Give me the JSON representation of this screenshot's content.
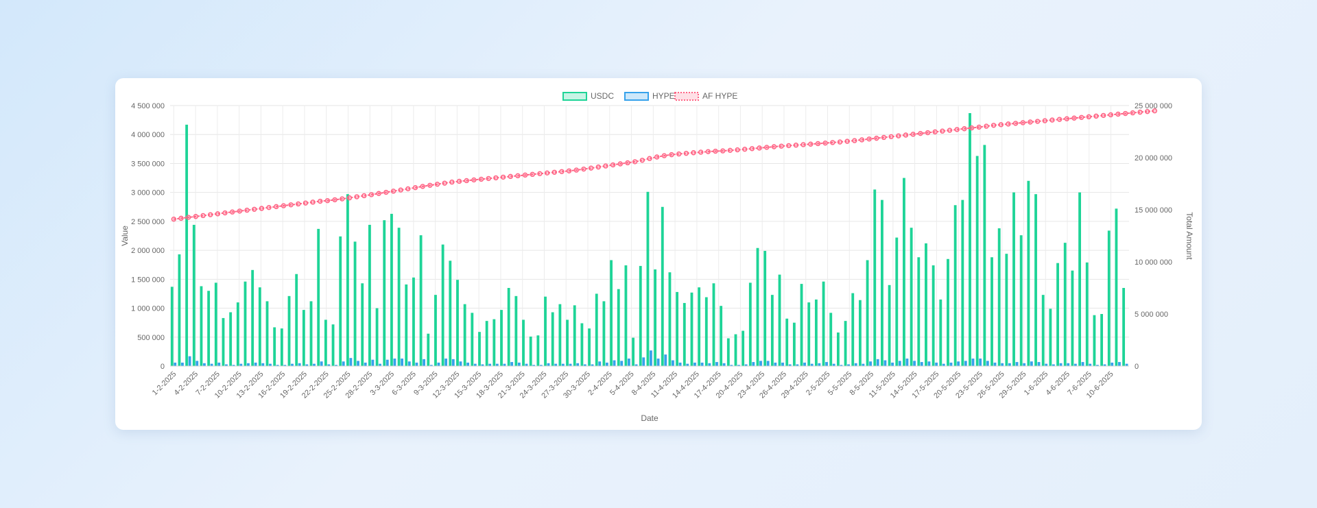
{
  "chart_data": {
    "type": "bar",
    "xlabel": "Date",
    "ylabel": "Value",
    "y2label": "Total Amount",
    "ylim": [
      0,
      4500000
    ],
    "y2lim": [
      0,
      25000000
    ],
    "yticks": [
      "0",
      "500 000",
      "1 000 000",
      "1 500 000",
      "2 000 000",
      "2 500 000",
      "3 000 000",
      "3 500 000",
      "4 000 000",
      "4 500 000"
    ],
    "y2ticks": [
      "0",
      "5 000 000",
      "10 000 000",
      "15 000 000",
      "20 000 000",
      "25 000 000"
    ],
    "grid": true,
    "legend_position": "top-center",
    "x_tick_labels": [
      "1-2-2025",
      "4-2-2025",
      "7-2-2025",
      "10-2-2025",
      "13-2-2025",
      "16-2-2025",
      "19-2-2025",
      "22-2-2025",
      "25-2-2025",
      "28-2-2025",
      "3-3-2025",
      "6-3-2025",
      "9-3-2025",
      "12-3-2025",
      "15-3-2025",
      "18-3-2025",
      "21-3-2025",
      "24-3-2025",
      "27-3-2025",
      "30-3-2025",
      "2-4-2025",
      "5-4-2025",
      "8-4-2025",
      "11-4-2025",
      "14-4-2025",
      "17-4-2025",
      "20-4-2025",
      "23-4-2025",
      "26-4-2025",
      "29-4-2025",
      "2-5-2025",
      "5-5-2025",
      "8-5-2025",
      "11-5-2025",
      "14-5-2025",
      "17-5-2025",
      "20-5-2025",
      "23-5-2025",
      "26-5-2025",
      "29-5-2025",
      "1-6-2025",
      "4-6-2025",
      "7-6-2025",
      "10-6-2025"
    ],
    "series": [
      {
        "name": "USDC",
        "axis": "left",
        "color": "#1ed497",
        "values": [
          1370000,
          1930000,
          4170000,
          2440000,
          1380000,
          1300000,
          1440000,
          830000,
          930000,
          1100000,
          1460000,
          1660000,
          1360000,
          1120000,
          670000,
          650000,
          1210000,
          1590000,
          970000,
          1120000,
          2370000,
          800000,
          720000,
          2240000,
          2970000,
          2150000,
          1430000,
          2440000,
          1000000,
          2520000,
          2630000,
          2390000,
          1410000,
          1530000,
          2260000,
          560000,
          1230000,
          2100000,
          1820000,
          1490000,
          1070000,
          920000,
          590000,
          780000,
          810000,
          970000,
          1350000,
          1210000,
          800000,
          510000,
          530000,
          1200000,
          930000,
          1070000,
          800000,
          1050000,
          740000,
          650000,
          1250000,
          1120000,
          1830000,
          1330000,
          1740000,
          490000,
          1730000,
          3010000,
          1670000,
          2750000,
          1620000,
          1280000,
          1090000,
          1270000,
          1360000,
          1190000,
          1430000,
          1040000,
          480000,
          550000,
          610000,
          1440000,
          2040000,
          1990000,
          1230000,
          1580000,
          820000,
          750000,
          1420000,
          1100000,
          1150000,
          1460000,
          920000,
          580000,
          780000,
          1260000,
          1140000,
          1830000,
          3050000,
          2870000,
          1400000,
          2220000,
          3250000,
          2390000,
          1880000,
          2120000,
          1740000,
          1150000,
          1850000,
          2780000,
          2870000,
          4370000,
          3630000,
          3820000,
          1880000,
          2380000,
          1940000,
          3000000,
          2260000,
          3200000,
          2970000,
          1230000,
          990000,
          1780000,
          2130000,
          1650000,
          3000000,
          1790000,
          880000,
          900000,
          2340000,
          2720000,
          1350000
        ]
      },
      {
        "name": "HYPE",
        "axis": "left",
        "color": "#36a2eb",
        "values": [
          60000,
          60000,
          170000,
          90000,
          50000,
          40000,
          60000,
          30000,
          20000,
          40000,
          50000,
          60000,
          50000,
          40000,
          20000,
          20000,
          40000,
          50000,
          30000,
          40000,
          80000,
          30000,
          20000,
          80000,
          140000,
          90000,
          60000,
          110000,
          40000,
          110000,
          130000,
          130000,
          80000,
          60000,
          120000,
          20000,
          60000,
          130000,
          120000,
          80000,
          60000,
          40000,
          30000,
          40000,
          40000,
          40000,
          70000,
          60000,
          40000,
          20000,
          20000,
          50000,
          40000,
          40000,
          40000,
          50000,
          30000,
          30000,
          80000,
          60000,
          100000,
          90000,
          130000,
          30000,
          150000,
          270000,
          130000,
          200000,
          100000,
          60000,
          40000,
          60000,
          60000,
          50000,
          70000,
          50000,
          20000,
          20000,
          30000,
          70000,
          90000,
          90000,
          60000,
          60000,
          30000,
          30000,
          60000,
          40000,
          50000,
          70000,
          40000,
          20000,
          30000,
          50000,
          40000,
          80000,
          120000,
          100000,
          60000,
          90000,
          130000,
          90000,
          70000,
          80000,
          60000,
          40000,
          60000,
          80000,
          90000,
          130000,
          130000,
          90000,
          60000,
          50000,
          50000,
          70000,
          50000,
          80000,
          70000,
          40000,
          30000,
          50000,
          50000,
          40000,
          70000,
          40000,
          20000,
          30000,
          60000,
          70000,
          40000
        ]
      },
      {
        "name": "AF HYPE",
        "axis": "right",
        "type": "line",
        "color": "#ff6384",
        "values": [
          14100000,
          14186000,
          14272000,
          14358000,
          14444000,
          14530000,
          14616000,
          14702000,
          14788000,
          14874000,
          14960000,
          15046000,
          15132000,
          15218000,
          15304000,
          15390000,
          15476000,
          15562000,
          15648000,
          15734000,
          15820000,
          15877000,
          15960000,
          16048000,
          16146000,
          16249000,
          16350000,
          16453000,
          16563000,
          16675000,
          16788000,
          16896000,
          17011000,
          17126000,
          17243000,
          17350000,
          17453000,
          17556000,
          17659000,
          17732000,
          17799000,
          17866000,
          17932000,
          17999000,
          18066000,
          18132000,
          18199000,
          18266000,
          18332000,
          18399000,
          18466000,
          18532000,
          18599000,
          18666000,
          18732000,
          18810000,
          18904000,
          19001000,
          19103000,
          19205000,
          19306000,
          19408000,
          19510000,
          19612000,
          19752000,
          19919000,
          20066000,
          20190000,
          20288000,
          20357000,
          20417000,
          20477000,
          20529000,
          20582000,
          20624000,
          20652000,
          20703000,
          20753000,
          20810000,
          20869000,
          20930000,
          20991000,
          21052000,
          21108000,
          21156000,
          21204000,
          21252000,
          21300000,
          21350000,
          21402000,
          21454000,
          21506000,
          21570000,
          21640000,
          21714000,
          21790000,
          21866000,
          21943000,
          22019000,
          22095000,
          22171000,
          22247000,
          22323000,
          22400000,
          22476000,
          22552000,
          22628000,
          22704000,
          22780000,
          22856000,
          22932000,
          23019000,
          23106000,
          23169000,
          23232000,
          23295000,
          23358000,
          23421000,
          23484000,
          23547000,
          23610000,
          23673000,
          23736000,
          23799000,
          23862000,
          23925000,
          23988000,
          24051000,
          24114000,
          24177000,
          24240000,
          24303000,
          24366000,
          24429000,
          24492000
        ]
      }
    ]
  }
}
